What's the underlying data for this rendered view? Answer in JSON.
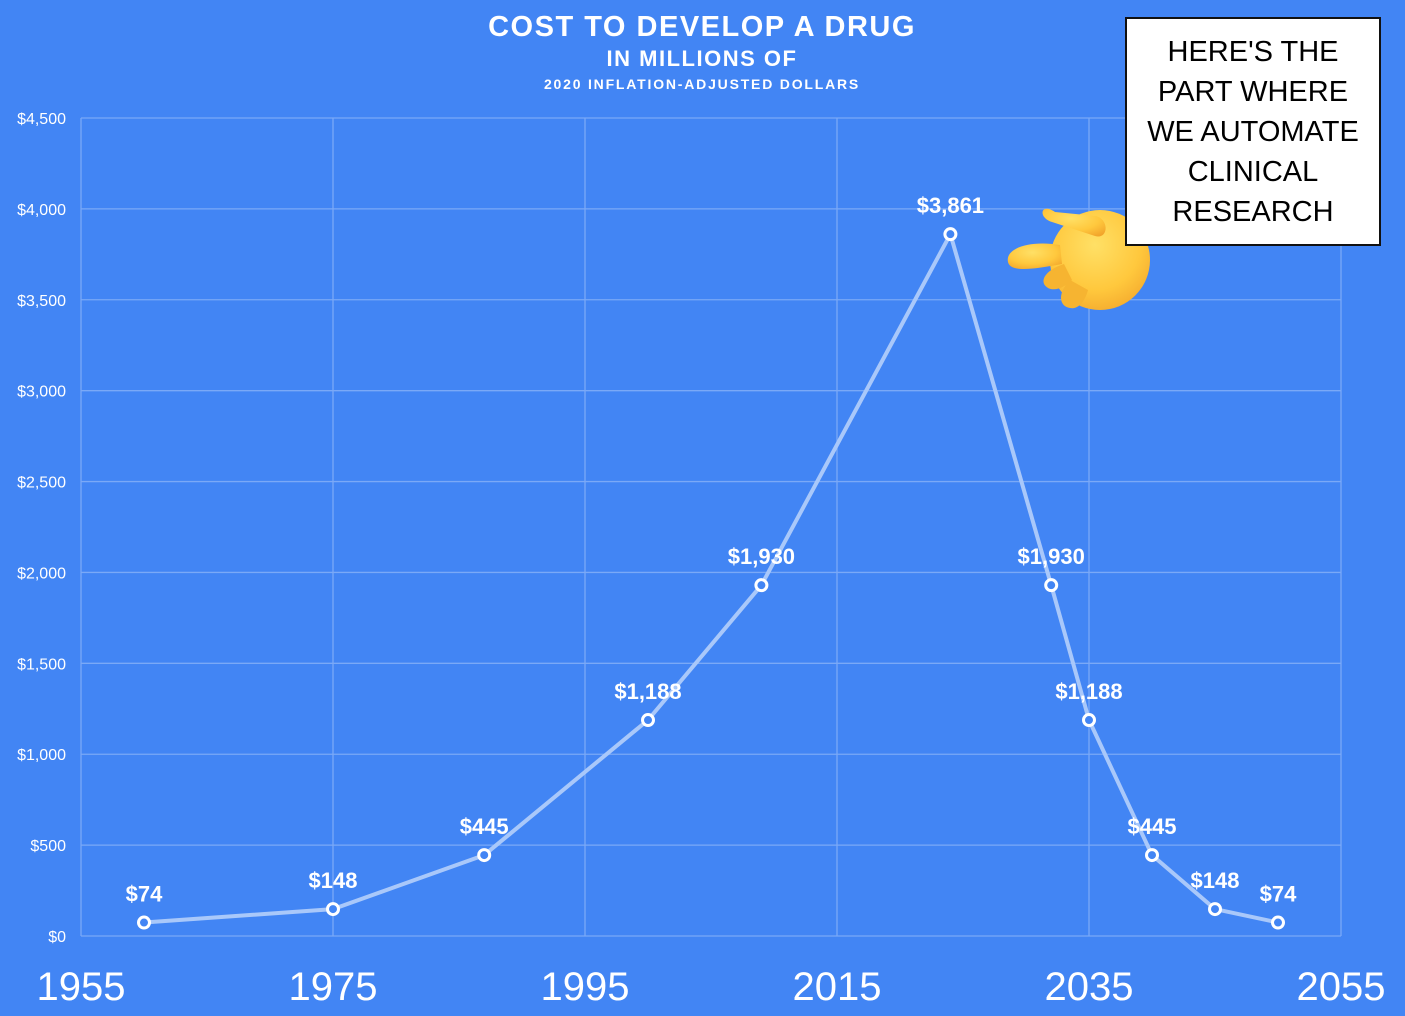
{
  "colors": {
    "background": "#4285F4",
    "gridline": "#7AA9F7",
    "series_line": "#A9C8FA",
    "marker_fill": "#4285F4",
    "marker_stroke": "#ffffff",
    "text": "#ffffff"
  },
  "callout": {
    "text": "HERE'S THE PART WHERE WE AUTOMATE CLINICAL RESEARCH",
    "icon": "pointing-hand-icon"
  },
  "chart_data": {
    "type": "line",
    "title": "COST TO DEVELOP A DRUG",
    "subtitle": "IN MILLIONS OF",
    "subtitle2": "2020 INFLATION-ADJUSTED DOLLARS",
    "xlabel": "",
    "ylabel": "",
    "xlim": [
      1955,
      2055
    ],
    "ylim": [
      0,
      4500
    ],
    "grid": true,
    "legend": "none",
    "x_ticks": [
      "1955",
      "1975",
      "1995",
      "2015",
      "2035",
      "2055"
    ],
    "y_ticks": [
      "$0",
      "$500",
      "$1,000",
      "$1,500",
      "$2,000",
      "$2,500",
      "$3,000",
      "$3,500",
      "$4,000",
      "$4,500"
    ],
    "series": [
      {
        "x": [
          1960,
          1975,
          1987,
          2000,
          2009,
          2024,
          2032,
          2035,
          2040,
          2045,
          2050
        ],
        "y": [
          74,
          148,
          445,
          1188,
          1930,
          3861,
          1930,
          1188,
          445,
          148,
          74
        ],
        "labels": [
          "$74",
          "$148",
          "$445",
          "$1,188",
          "$1,930",
          "$3,861",
          "$1,930",
          "$1,188",
          "$445",
          "$148",
          "$74"
        ]
      }
    ]
  }
}
